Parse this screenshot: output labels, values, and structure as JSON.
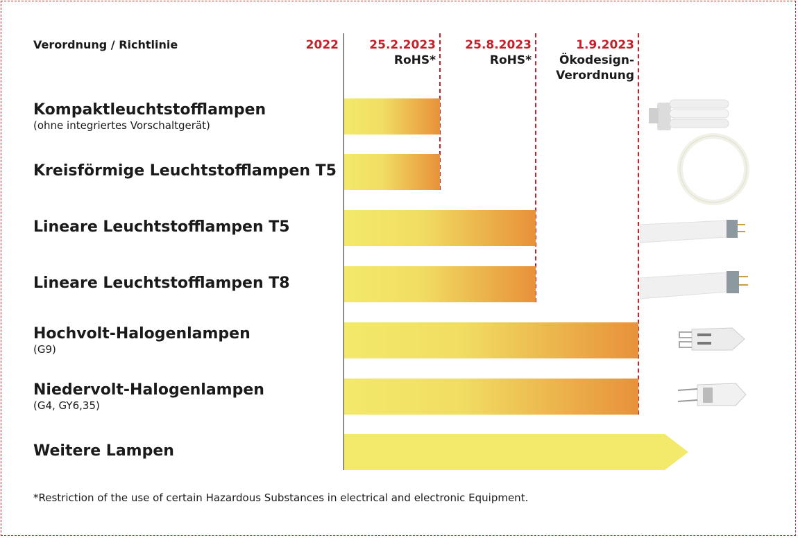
{
  "header": {
    "column_label": "Verordnung / Richtlinie",
    "start_label": "2022"
  },
  "milestones": [
    {
      "date": "25.2.2023",
      "label": "RoHS*"
    },
    {
      "date": "25.8.2023",
      "label": "RoHS*"
    },
    {
      "date": "1.9.2023",
      "label": "Ökodesign-Verordnung",
      "label_lines": [
        "Ökodesign-",
        "Verordnung"
      ]
    }
  ],
  "colors": {
    "accent": "#c8202a",
    "bar_start": "#f3e96a",
    "bar_end": "#e8913a"
  },
  "chart_data": {
    "type": "bar",
    "orientation": "horizontal-timeline",
    "x_start": "2022",
    "categories": [
      "Kompaktleuchtstofflampen",
      "Kreisförmige Leuchtstofflampen T5",
      "Lineare Leuchtstofflampen T5",
      "Lineare Leuchtstofflampen T8",
      "Hochvolt-Halogenlampen",
      "Niedervolt-Halogenlampen",
      "Weitere Lampen"
    ],
    "rows": [
      {
        "title": "Kompaktleuchtstofflampen",
        "subtitle": "(ohne integriertes Vorschaltgerät)",
        "end": "25.2.2023",
        "icon": "compact-fluorescent-lamp-icon"
      },
      {
        "title": "Kreisförmige Leuchtstofflampen T5",
        "subtitle": "",
        "end": "25.2.2023",
        "icon": "circular-fluorescent-lamp-icon"
      },
      {
        "title": "Lineare Leuchtstofflampen T5",
        "subtitle": "",
        "end": "25.8.2023",
        "icon": "linear-t5-tube-icon"
      },
      {
        "title": "Lineare Leuchtstofflampen T8",
        "subtitle": "",
        "end": "25.8.2023",
        "icon": "linear-t8-tube-icon"
      },
      {
        "title": "Hochvolt-Halogenlampen",
        "subtitle": "(G9)",
        "end": "1.9.2023",
        "icon": "g9-halogen-lamp-icon"
      },
      {
        "title": "Niedervolt-Halogenlampen",
        "subtitle": "(G4, GY6,35)",
        "end": "1.9.2023",
        "icon": "g4-halogen-lamp-icon"
      },
      {
        "title": "Weitere Lampen",
        "subtitle": "",
        "end": "open",
        "icon": ""
      }
    ]
  },
  "footnote": "*Restriction of the use of certain Hazardous Substances in electrical and electronic Equipment."
}
